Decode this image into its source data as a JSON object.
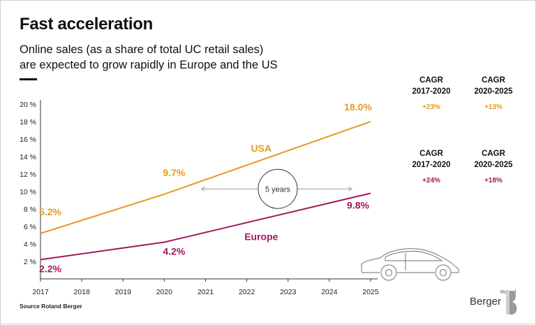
{
  "header": {
    "title": "Fast acceleration",
    "subtitle_line1": "Online sales (as a share of total UC retail sales)",
    "subtitle_line2": "are expected to grow rapidly in Europe and the US"
  },
  "footer": {
    "source": "Source Roland Berger",
    "logo_small": "Roland",
    "logo_big": "Berger"
  },
  "colors": {
    "usa": "#e29b22",
    "europe": "#a3175f",
    "axis": "#333333",
    "arrow": "#999999"
  },
  "chart_data": {
    "type": "line",
    "title": "Fast acceleration",
    "xlabel": "",
    "ylabel": "",
    "x": [
      2017,
      2018,
      2019,
      2020,
      2021,
      2022,
      2023,
      2024,
      2025
    ],
    "x_tick_labels": [
      "2017",
      "2018",
      "2019",
      "2020",
      "2021",
      "2022",
      "2023",
      "2024",
      "2025"
    ],
    "ylim": [
      0,
      20
    ],
    "y_ticks": [
      2,
      4,
      6,
      8,
      10,
      12,
      14,
      16,
      18,
      20
    ],
    "y_tick_labels": [
      "2 %",
      "4 %",
      "6 %",
      "8 %",
      "10 %",
      "12 %",
      "14 %",
      "16 %",
      "18 %",
      "20 %"
    ],
    "series": [
      {
        "name": "USA",
        "color": "#e29b22",
        "points": [
          [
            2017,
            5.2
          ],
          [
            2020,
            9.7
          ],
          [
            2025,
            18.0
          ]
        ],
        "point_labels": [
          "5.2%",
          "9.7%",
          "18.0%"
        ],
        "cagr": [
          {
            "header": "CAGR",
            "period": "2017-2020",
            "value": "+23%"
          },
          {
            "header": "CAGR",
            "period": "2020-2025",
            "value": "+13%"
          }
        ]
      },
      {
        "name": "Europe",
        "color": "#a3175f",
        "points": [
          [
            2017,
            2.2
          ],
          [
            2020,
            4.2
          ],
          [
            2025,
            9.8
          ]
        ],
        "point_labels": [
          "2.2%",
          "4.2%",
          "9.8%"
        ],
        "cagr": [
          {
            "header": "CAGR",
            "period": "2017-2020",
            "value": "+24%"
          },
          {
            "header": "CAGR",
            "period": "2020-2025",
            "value": "+18%"
          }
        ]
      }
    ],
    "annotations": [
      {
        "text": "5 years",
        "from_x": 2021,
        "to_x": 2025,
        "y": 10.3
      }
    ]
  }
}
